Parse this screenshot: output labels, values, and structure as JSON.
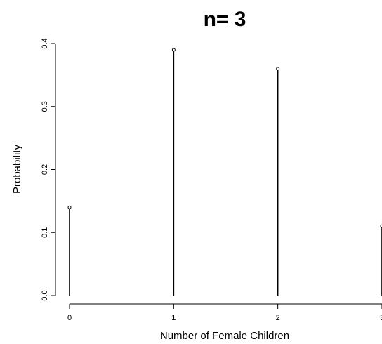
{
  "chart_data": {
    "type": "bar",
    "style": "stem",
    "title": "n= 3",
    "xlabel": "Number of Female Children",
    "ylabel": "Probability",
    "x": [
      0,
      1,
      2,
      3
    ],
    "values": [
      0.14,
      0.39,
      0.36,
      0.11
    ],
    "x_ticks": [
      "0",
      "1",
      "2",
      "3"
    ],
    "y_ticks": [
      "0.0",
      "0.1",
      "0.2",
      "0.3",
      "0.4"
    ],
    "xlim": [
      0,
      3
    ],
    "ylim": [
      0,
      0.4
    ],
    "grid": false,
    "colors": {
      "stem": "#000000",
      "axis": "#000000",
      "background": "#ffffff"
    }
  }
}
